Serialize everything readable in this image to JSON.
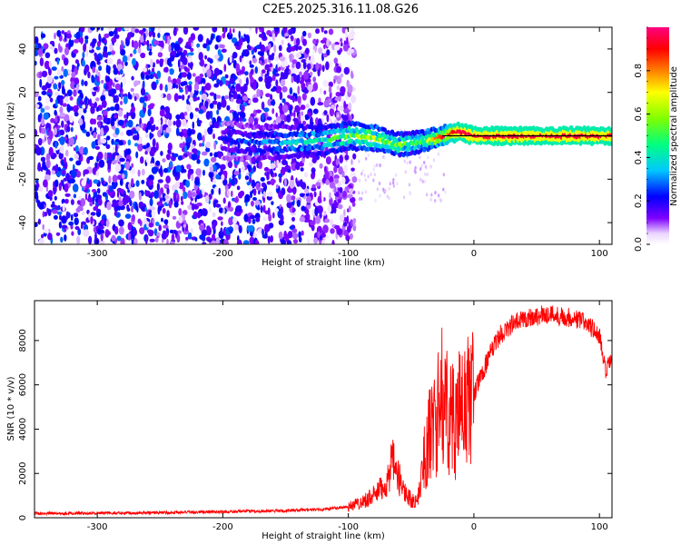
{
  "title": "C2E5.2025.316.11.08.G26",
  "chart_data": [
    {
      "type": "heatmap",
      "name": "spectrogram",
      "xlabel": "Height of straight line (km)",
      "ylabel": "Frequency (Hz)",
      "xlim": [
        -350,
        110
      ],
      "ylim": [
        -50,
        50
      ],
      "xticks": [
        -300,
        -200,
        -100,
        0,
        100
      ],
      "yticks": [
        -40,
        -20,
        0,
        20,
        40
      ],
      "grid": false,
      "colorbar": {
        "label": "Normalized spectral amplitude",
        "range": [
          0,
          1
        ],
        "ticks": [
          "0.0",
          "0.2",
          "0.4",
          "0.6",
          "0.8"
        ],
        "tick_values": [
          0.0,
          0.2,
          0.4,
          0.6,
          0.8
        ],
        "colormap": [
          "#ffffff",
          "#ead5ff",
          "#7f00ff",
          "#0000ff",
          "#00ffff",
          "#00ff00",
          "#ffff00",
          "#ff8000",
          "#ff0000",
          "#ff0080"
        ]
      },
      "signal_track": {
        "x": [
          -200,
          -180,
          -150,
          -120,
          -100,
          -80,
          -60,
          -45,
          -30,
          -20,
          -12,
          0,
          50,
          110
        ],
        "freq": [
          -2,
          -3,
          -3,
          -2,
          0,
          -1,
          -4,
          -3,
          -1,
          1,
          2,
          0,
          0,
          0
        ],
        "amplitude": [
          0.2,
          0.25,
          0.35,
          0.45,
          0.55,
          0.6,
          0.55,
          0.5,
          0.7,
          0.85,
          0.95,
          0.95,
          0.95,
          0.95
        ]
      },
      "noise_region": {
        "x": [
          -350,
          -100
        ],
        "freq": [
          -50,
          50
        ],
        "amplitude": [
          0.0,
          0.25
        ]
      }
    },
    {
      "type": "line",
      "name": "snr",
      "xlabel": "Height of straight line (km)",
      "ylabel": "SNR (10 * v/v)",
      "xlim": [
        -350,
        110
      ],
      "ylim": [
        0,
        9800
      ],
      "xticks": [
        -300,
        -200,
        -100,
        0,
        100
      ],
      "yticks": [
        0,
        2000,
        4000,
        6000,
        8000
      ],
      "grid": false,
      "color": "#ff0000",
      "series": [
        {
          "name": "SNR",
          "x": [
            -350,
            -300,
            -250,
            -200,
            -150,
            -120,
            -100,
            -90,
            -80,
            -70,
            -65,
            -60,
            -55,
            -50,
            -45,
            -40,
            -35,
            -30,
            -25,
            -20,
            -15,
            -10,
            -5,
            0,
            10,
            20,
            30,
            40,
            50,
            60,
            70,
            80,
            90,
            95,
            100,
            105,
            108,
            110
          ],
          "y": [
            200,
            210,
            230,
            270,
            320,
            380,
            500,
            700,
            1000,
            1500,
            2500,
            1800,
            1200,
            800,
            700,
            2500,
            3800,
            4500,
            5500,
            4800,
            4200,
            5000,
            5200,
            5600,
            7000,
            8200,
            8700,
            9000,
            9100,
            9200,
            9100,
            9000,
            8800,
            8500,
            8200,
            6500,
            7000,
            7200
          ]
        }
      ]
    }
  ]
}
